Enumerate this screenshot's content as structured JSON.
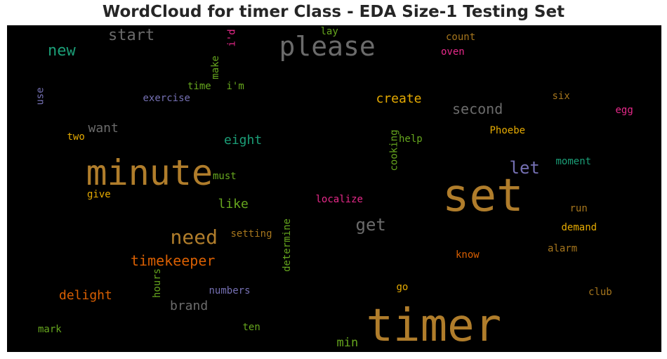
{
  "chart_data": {
    "type": "wordcloud",
    "title": "WordCloud for timer Class - EDA Size-1 Testing Set",
    "background": "#000000",
    "words": [
      {
        "text": "timer",
        "color": "#b07d2b",
        "orientation": "horizontal"
      },
      {
        "text": "set",
        "color": "#b07d2b",
        "orientation": "horizontal"
      },
      {
        "text": "minute",
        "color": "#b07d2b",
        "orientation": "horizontal"
      },
      {
        "text": "please",
        "color": "#6b6b6b",
        "orientation": "horizontal"
      },
      {
        "text": "need",
        "color": "#b07d2b",
        "orientation": "horizontal"
      },
      {
        "text": "get",
        "color": "#6b6b6b",
        "orientation": "horizontal"
      },
      {
        "text": "new",
        "color": "#1b9e77",
        "orientation": "vertical"
      },
      {
        "text": "start",
        "color": "#6b6b6b",
        "orientation": "horizontal"
      },
      {
        "text": "let",
        "color": "#7570b3",
        "orientation": "horizontal"
      },
      {
        "text": "timekeeper",
        "color": "#d95f02",
        "orientation": "horizontal"
      },
      {
        "text": "second",
        "color": "#6b6b6b",
        "orientation": "horizontal"
      },
      {
        "text": "create",
        "color": "#e6ab02",
        "orientation": "horizontal"
      },
      {
        "text": "delight",
        "color": "#d95f02",
        "orientation": "horizontal"
      },
      {
        "text": "brand",
        "color": "#6b6b6b",
        "orientation": "horizontal"
      },
      {
        "text": "eight",
        "color": "#1b9e77",
        "orientation": "horizontal"
      },
      {
        "text": "like",
        "color": "#66a61e",
        "orientation": "horizontal"
      },
      {
        "text": "want",
        "color": "#6b6b6b",
        "orientation": "horizontal"
      },
      {
        "text": "min",
        "color": "#66a61e",
        "orientation": "horizontal"
      },
      {
        "text": "localize",
        "color": "#e7298a",
        "orientation": "horizontal"
      },
      {
        "text": "exercise",
        "color": "#7570b3",
        "orientation": "horizontal"
      },
      {
        "text": "numbers",
        "color": "#7570b3",
        "orientation": "horizontal"
      },
      {
        "text": "setting",
        "color": "#a6761d",
        "orientation": "horizontal"
      },
      {
        "text": "moment",
        "color": "#1b9e77",
        "orientation": "horizontal"
      },
      {
        "text": "demand",
        "color": "#e6ab02",
        "orientation": "horizontal"
      },
      {
        "text": "Phoebe",
        "color": "#e6ab02",
        "orientation": "horizontal"
      },
      {
        "text": "cooking",
        "color": "#66a61e",
        "orientation": "vertical"
      },
      {
        "text": "determine",
        "color": "#66a61e",
        "orientation": "vertical"
      },
      {
        "text": "hours",
        "color": "#66a61e",
        "orientation": "vertical"
      },
      {
        "text": "make",
        "color": "#66a61e",
        "orientation": "vertical"
      },
      {
        "text": "use",
        "color": "#7570b3",
        "orientation": "vertical"
      },
      {
        "text": "i'd",
        "color": "#e7298a",
        "orientation": "vertical"
      },
      {
        "text": "alarm",
        "color": "#a6761d",
        "orientation": "horizontal"
      },
      {
        "text": "count",
        "color": "#a6761d",
        "orientation": "horizontal"
      },
      {
        "text": "oven",
        "color": "#e7298a",
        "orientation": "horizontal"
      },
      {
        "text": "six",
        "color": "#a6761d",
        "orientation": "horizontal"
      },
      {
        "text": "egg",
        "color": "#e7298a",
        "orientation": "horizontal"
      },
      {
        "text": "run",
        "color": "#a6761d",
        "orientation": "horizontal"
      },
      {
        "text": "know",
        "color": "#d95f02",
        "orientation": "horizontal"
      },
      {
        "text": "club",
        "color": "#a6761d",
        "orientation": "horizontal"
      },
      {
        "text": "go",
        "color": "#e6ab02",
        "orientation": "horizontal"
      },
      {
        "text": "help",
        "color": "#66a61e",
        "orientation": "horizontal"
      },
      {
        "text": "lay",
        "color": "#66a61e",
        "orientation": "horizontal"
      },
      {
        "text": "time",
        "color": "#66a61e",
        "orientation": "horizontal"
      },
      {
        "text": "i'm",
        "color": "#66a61e",
        "orientation": "horizontal"
      },
      {
        "text": "two",
        "color": "#e6ab02",
        "orientation": "horizontal"
      },
      {
        "text": "give",
        "color": "#e6ab02",
        "orientation": "horizontal"
      },
      {
        "text": "must",
        "color": "#66a61e",
        "orientation": "horizontal"
      },
      {
        "text": "ten",
        "color": "#66a61e",
        "orientation": "horizontal"
      },
      {
        "text": "mark",
        "color": "#66a61e",
        "orientation": "horizontal"
      }
    ]
  }
}
